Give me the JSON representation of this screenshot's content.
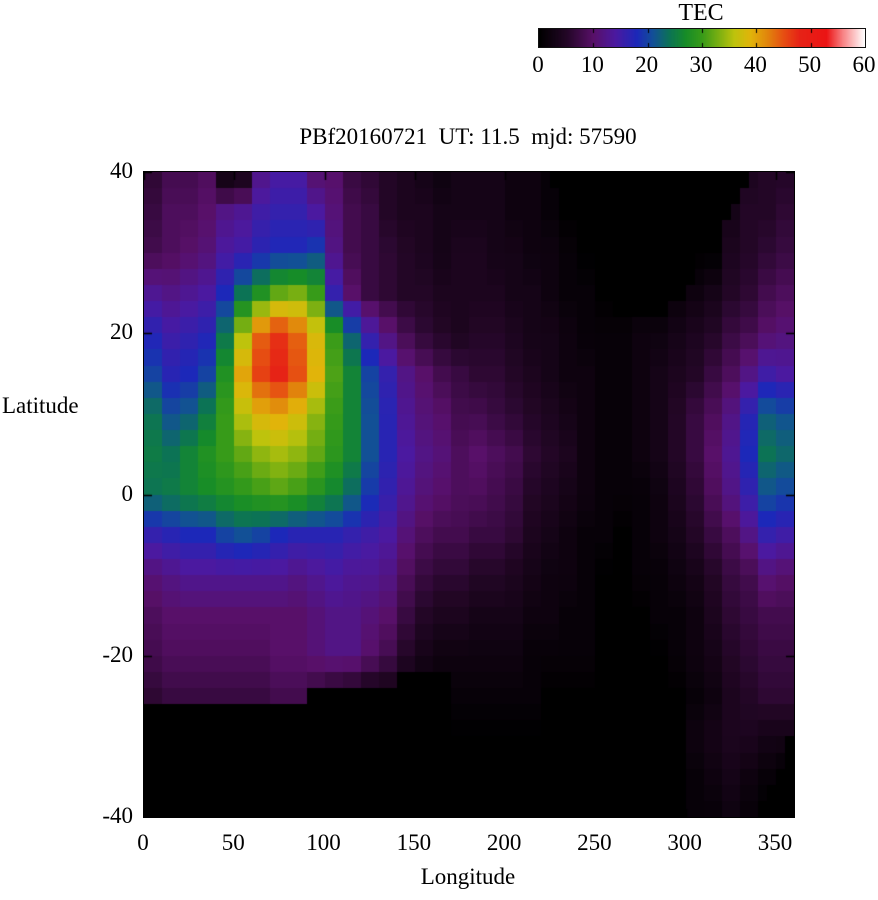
{
  "chart_data": {
    "type": "heatmap",
    "title": "PBf20160721  UT: 11.5  mjd: 57590",
    "xlabel": "Longitude",
    "ylabel": "Latitude",
    "xlim": [
      0,
      360
    ],
    "ylim": [
      -40,
      40
    ],
    "x_ticks": [
      0,
      50,
      100,
      150,
      200,
      250,
      300,
      350
    ],
    "y_ticks": [
      40,
      20,
      0,
      -20,
      -40
    ],
    "grid_on": false,
    "colorbar": {
      "label": "TEC",
      "min": 0,
      "max": 60,
      "ticks": [
        0,
        10,
        20,
        30,
        40,
        50,
        60
      ],
      "position": "top-right"
    },
    "palette": [
      [
        0,
        [
          0,
          0,
          0
        ]
      ],
      [
        5,
        [
          35,
          6,
          38
        ]
      ],
      [
        10,
        [
          88,
          16,
          105
        ]
      ],
      [
        14,
        [
          75,
          25,
          160
        ]
      ],
      [
        18,
        [
          28,
          40,
          185
        ]
      ],
      [
        21,
        [
          18,
          80,
          150
        ]
      ],
      [
        24,
        [
          12,
          115,
          85
        ]
      ],
      [
        27,
        [
          22,
          140,
          40
        ]
      ],
      [
        30,
        [
          55,
          155,
          25
        ]
      ],
      [
        33,
        [
          120,
          175,
          18
        ]
      ],
      [
        36,
        [
          190,
          195,
          12
        ]
      ],
      [
        39,
        [
          225,
          180,
          10
        ]
      ],
      [
        42,
        [
          225,
          135,
          12
        ]
      ],
      [
        45,
        [
          230,
          80,
          18
        ]
      ],
      [
        48,
        [
          230,
          35,
          22
        ]
      ],
      [
        53,
        [
          235,
          20,
          20
        ]
      ],
      [
        56,
        [
          248,
          130,
          132
        ]
      ],
      [
        60,
        [
          255,
          255,
          255
        ]
      ]
    ],
    "grid": {
      "lon_start": 0,
      "lon_step": 10,
      "lats": [
        40,
        35,
        30,
        25,
        20,
        15,
        10,
        5,
        0,
        -5,
        -10,
        -15,
        -20,
        -25,
        -30,
        -35,
        -40
      ],
      "values": [
        [
          6,
          8,
          8,
          9,
          1,
          2,
          12,
          14,
          14,
          10,
          10,
          7,
          6,
          5,
          4,
          3,
          2,
          3,
          3,
          3,
          2,
          2,
          1,
          0,
          0,
          0,
          0,
          0,
          0,
          0,
          0,
          0,
          0,
          4,
          5,
          5
        ],
        [
          7,
          9,
          9,
          10,
          12,
          13,
          15,
          16,
          16,
          14,
          11,
          8,
          7,
          5,
          4,
          4,
          3,
          3,
          3,
          3,
          2,
          2,
          1,
          0,
          0,
          0,
          0,
          0,
          0,
          0,
          0,
          0,
          3,
          5,
          5,
          6
        ],
        [
          8,
          9,
          10,
          11,
          14,
          15,
          17,
          18,
          18,
          20,
          12,
          8,
          7,
          6,
          5,
          4,
          3,
          4,
          4,
          3,
          3,
          2,
          2,
          1,
          0,
          0,
          0,
          0,
          0,
          0,
          0,
          0,
          4,
          5,
          6,
          7
        ],
        [
          13,
          12,
          13,
          14,
          18,
          24,
          28,
          32,
          33,
          30,
          16,
          10,
          7,
          6,
          5,
          5,
          4,
          4,
          4,
          4,
          3,
          3,
          2,
          1,
          1,
          0,
          0,
          0,
          0,
          1,
          2,
          3,
          5,
          6,
          8,
          9
        ],
        [
          17,
          15,
          16,
          17,
          24,
          35,
          44,
          47,
          44,
          38,
          30,
          22,
          15,
          11,
          8,
          6,
          5,
          4,
          5,
          5,
          4,
          3,
          3,
          2,
          1,
          1,
          1,
          2,
          2,
          3,
          4,
          5,
          7,
          8,
          10,
          11
        ],
        [
          20,
          17,
          18,
          20,
          28,
          40,
          46,
          48,
          45,
          39,
          31,
          26,
          20,
          16,
          12,
          10,
          8,
          7,
          6,
          6,
          5,
          4,
          3,
          2,
          2,
          1,
          1,
          2,
          3,
          4,
          5,
          7,
          9,
          12,
          15,
          14
        ],
        [
          24,
          21,
          22,
          25,
          30,
          36,
          39,
          40,
          38,
          34,
          30,
          26,
          21,
          17,
          13,
          11,
          10,
          8,
          8,
          7,
          6,
          5,
          4,
          3,
          2,
          1,
          1,
          2,
          3,
          5,
          7,
          9,
          12,
          17,
          22,
          21
        ],
        [
          25,
          24,
          26,
          28,
          30,
          32,
          34,
          35,
          34,
          32,
          29,
          26,
          21,
          17,
          14,
          12,
          11,
          9,
          10,
          9,
          8,
          6,
          5,
          4,
          2,
          1,
          1,
          2,
          3,
          5,
          7,
          10,
          13,
          18,
          24,
          23
        ],
        [
          24,
          25,
          26,
          27,
          28,
          29,
          30,
          31,
          30,
          28,
          26,
          23,
          19,
          16,
          13,
          11,
          10,
          9,
          9,
          8,
          7,
          5,
          4,
          3,
          2,
          1,
          1,
          1,
          2,
          4,
          6,
          9,
          12,
          16,
          21,
          20
        ],
        [
          16,
          17,
          18,
          18,
          20,
          21,
          20,
          18,
          17,
          17,
          17,
          16,
          15,
          14,
          11,
          9,
          8,
          8,
          7,
          7,
          6,
          4,
          3,
          2,
          1,
          1,
          0,
          1,
          2,
          3,
          5,
          7,
          9,
          12,
          16,
          15
        ],
        [
          11,
          12,
          13,
          13,
          13,
          13,
          13,
          13,
          12,
          13,
          14,
          13,
          13,
          12,
          9,
          7,
          6,
          6,
          5,
          5,
          4,
          3,
          2,
          2,
          1,
          0,
          0,
          1,
          1,
          2,
          3,
          5,
          7,
          8,
          11,
          10
        ],
        [
          9,
          10,
          10,
          10,
          10,
          10,
          10,
          10,
          10,
          11,
          12,
          12,
          11,
          10,
          7,
          5,
          4,
          4,
          3,
          3,
          3,
          2,
          2,
          1,
          1,
          0,
          0,
          0,
          1,
          1,
          2,
          4,
          6,
          7,
          8,
          8
        ],
        [
          8,
          9,
          9,
          9,
          9,
          9,
          9,
          10,
          10,
          11,
          12,
          12,
          10,
          8,
          5,
          3,
          2,
          2,
          2,
          2,
          2,
          1,
          1,
          1,
          1,
          0,
          0,
          0,
          0,
          1,
          2,
          3,
          5,
          6,
          7,
          7
        ],
        [
          6,
          7,
          7,
          7,
          7,
          7,
          7,
          8,
          8,
          6,
          4,
          3,
          2,
          2,
          1,
          1,
          1,
          1,
          1,
          1,
          1,
          1,
          0,
          0,
          0,
          0,
          0,
          0,
          0,
          0,
          1,
          2,
          4,
          5,
          6,
          6
        ],
        [
          0,
          0,
          0,
          0,
          0,
          0,
          0,
          0,
          0,
          0,
          0,
          0,
          0,
          0,
          0,
          0,
          0,
          0,
          0,
          0,
          0,
          0,
          0,
          0,
          0,
          0,
          0,
          0,
          0,
          0,
          2,
          3,
          4,
          4,
          3,
          3
        ],
        [
          0,
          0,
          0,
          0,
          0,
          0,
          0,
          0,
          0,
          0,
          0,
          0,
          0,
          0,
          0,
          0,
          0,
          0,
          0,
          0,
          0,
          0,
          0,
          0,
          0,
          0,
          0,
          0,
          0,
          0,
          1,
          2,
          3,
          2,
          1,
          0
        ],
        [
          0,
          0,
          0,
          0,
          0,
          0,
          0,
          0,
          0,
          0,
          0,
          0,
          0,
          0,
          0,
          0,
          0,
          0,
          0,
          0,
          0,
          0,
          0,
          0,
          0,
          0,
          0,
          0,
          0,
          0,
          1,
          1,
          2,
          1,
          0,
          0
        ]
      ]
    },
    "black_below": [
      [
        0,
        10,
        -26
      ],
      [
        10,
        25,
        -25.5
      ],
      [
        25,
        45,
        -26
      ],
      [
        45,
        60,
        -25.5
      ],
      [
        60,
        90,
        -26.5
      ],
      [
        90,
        105,
        -24.5
      ],
      [
        105,
        140,
        -23.5
      ],
      [
        140,
        170,
        -21.5
      ],
      [
        340,
        347,
        -38
      ],
      [
        347,
        351,
        -35.5
      ],
      [
        351,
        355,
        -33
      ],
      [
        355,
        360,
        -30
      ]
    ],
    "black_above": [
      [
        47,
        72,
        39
      ],
      [
        225,
        233,
        37
      ],
      [
        233,
        240,
        35
      ],
      [
        240,
        247,
        32
      ],
      [
        247,
        253,
        29
      ],
      [
        253,
        260,
        26.5
      ],
      [
        260,
        290,
        21
      ],
      [
        290,
        298,
        24
      ],
      [
        298,
        305,
        26.5
      ],
      [
        305,
        312,
        29
      ],
      [
        312,
        318,
        31.5
      ],
      [
        318,
        324,
        34
      ],
      [
        324,
        330,
        36.5
      ],
      [
        330,
        337,
        38.5
      ]
    ]
  }
}
